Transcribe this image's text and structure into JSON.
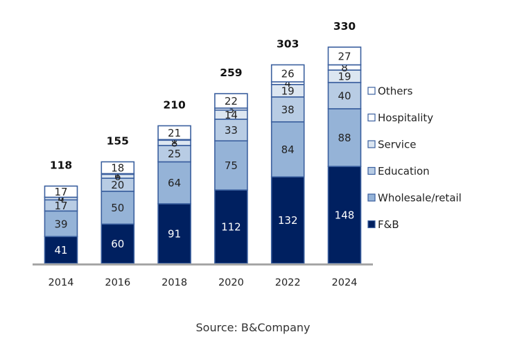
{
  "chart_data": {
    "type": "bar",
    "stacked": true,
    "title": "",
    "xlabel": "",
    "ylabel": "",
    "categories": [
      "2014",
      "2016",
      "2018",
      "2020",
      "2022",
      "2024"
    ],
    "series": [
      {
        "name": "F&B",
        "color": "#002060",
        "label_color": "#ffffff",
        "values": [
          41,
          60,
          91,
          112,
          132,
          148
        ]
      },
      {
        "name": "Wholesale/retail",
        "color": "#95B3D7",
        "label_color": "#222222",
        "values": [
          39,
          50,
          64,
          75,
          84,
          88
        ]
      },
      {
        "name": "Education",
        "color": "#B8CCE4",
        "label_color": "#222222",
        "values": [
          17,
          20,
          25,
          33,
          38,
          40
        ]
      },
      {
        "name": "Service",
        "color": "#DCE6F1",
        "label_color": "#222222",
        "values": [
          4,
          6,
          8,
          14,
          19,
          19
        ]
      },
      {
        "name": "Hospitality",
        "color": "#FFFFFF",
        "label_color": "#222222",
        "values": [
          0,
          1,
          1,
          3,
          4,
          8
        ]
      },
      {
        "name": "Others",
        "color": "#FFFFFF",
        "label_color": "#222222",
        "values": [
          17,
          18,
          21,
          22,
          26,
          27
        ]
      }
    ],
    "totals": [
      118,
      155,
      210,
      259,
      303,
      330
    ],
    "legend": {
      "placement": "right",
      "order": [
        "Others",
        "Hospitality",
        "Service",
        "Education",
        "Wholesale/retail",
        "F&B"
      ]
    },
    "ylim": [
      0,
      330
    ],
    "grid": false,
    "border_color": "#3A5F9E",
    "axis_color": "#A6A6A6"
  },
  "source": "Source: B&Company"
}
